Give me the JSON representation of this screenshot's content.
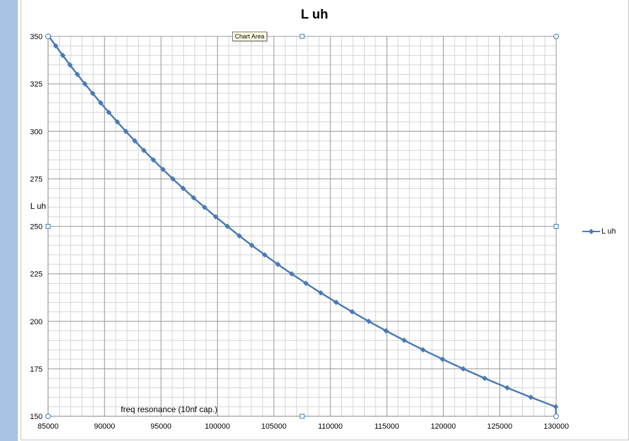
{
  "tooltip": "Chart Area",
  "legend": [
    {
      "label": "L uh",
      "color": "#4a7ab5"
    }
  ],
  "chart_data": {
    "type": "line",
    "title": "L uh",
    "xlabel": "freq resonance (10nf cap.)",
    "ylabel": "L uh",
    "xlim": [
      85000,
      130000
    ],
    "ylim": [
      150,
      350
    ],
    "xticks": [
      "85000",
      "90000",
      "95000",
      "100000",
      "105000",
      "110000",
      "115000",
      "120000",
      "125000",
      "130000"
    ],
    "yticks": [
      "150",
      "175",
      "200",
      "225",
      "250",
      "275",
      "300",
      "325",
      "350"
    ],
    "grid": true,
    "grid_minor": true,
    "legend_position": "right",
    "series": [
      {
        "name": "L uh",
        "color": "#4a7ab5",
        "marker": "diamond",
        "points": [
          [
            85070,
            350
          ],
          [
            85680,
            345
          ],
          [
            86300,
            340
          ],
          [
            86940,
            335
          ],
          [
            87590,
            330
          ],
          [
            88260,
            325
          ],
          [
            88950,
            320
          ],
          [
            89660,
            315
          ],
          [
            90380,
            310
          ],
          [
            91130,
            305
          ],
          [
            91890,
            300
          ],
          [
            92680,
            295
          ],
          [
            93480,
            290
          ],
          [
            94320,
            285
          ],
          [
            95170,
            280
          ],
          [
            96050,
            275
          ],
          [
            96960,
            270
          ],
          [
            97890,
            265
          ],
          [
            98860,
            260
          ],
          [
            99850,
            255
          ],
          [
            100880,
            250
          ],
          [
            101940,
            245
          ],
          [
            103040,
            240
          ],
          [
            104180,
            235
          ],
          [
            105350,
            230
          ],
          [
            106570,
            225
          ],
          [
            107840,
            220
          ],
          [
            109150,
            215
          ],
          [
            110510,
            210
          ],
          [
            111930,
            205
          ],
          [
            113400,
            200
          ],
          [
            114930,
            195
          ],
          [
            116530,
            190
          ],
          [
            118200,
            185
          ],
          [
            119940,
            180
          ],
          [
            121760,
            175
          ],
          [
            123670,
            170
          ],
          [
            125660,
            165
          ],
          [
            127760,
            160
          ],
          [
            129960,
            155
          ],
          [
            130000,
            150
          ]
        ]
      }
    ]
  }
}
